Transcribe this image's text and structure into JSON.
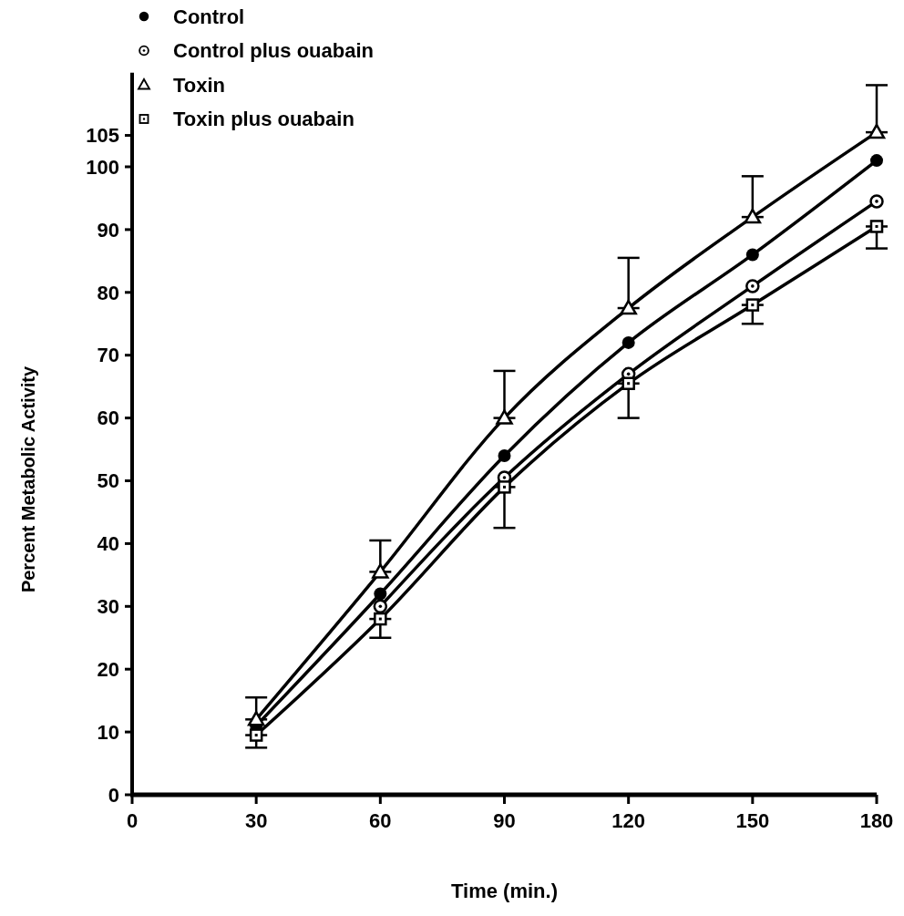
{
  "chart_data": {
    "type": "line",
    "xlabel": "Time (min.)",
    "ylabel": "Percent Metabolic Activity",
    "x": [
      30,
      60,
      90,
      120,
      150,
      180
    ],
    "xlim": [
      0,
      180
    ],
    "xticks": [
      0,
      30,
      60,
      90,
      120,
      150,
      180
    ],
    "ylim": [
      0,
      115
    ],
    "yticks": [
      0,
      10,
      20,
      30,
      40,
      50,
      60,
      70,
      80,
      90,
      100,
      105
    ],
    "legend": "top left",
    "grid": false,
    "line_style": "solid",
    "series": [
      {
        "name": "Control",
        "color": "#000000",
        "marker": "circle",
        "values": [
          11,
          32,
          54,
          72,
          86,
          101
        ]
      },
      {
        "name": "Control plus ouabain",
        "color": "#000000",
        "marker": "circle-open",
        "values": [
          null,
          30,
          50.5,
          67,
          81,
          94.5
        ]
      },
      {
        "name": "Toxin",
        "color": "#000000",
        "marker": "triangle",
        "values": [
          12,
          35.5,
          60,
          77.5,
          92,
          105.5
        ],
        "errors": [
          [
            12,
            15.5
          ],
          [
            35.5,
            40.5
          ],
          [
            60,
            67.5
          ],
          [
            77.5,
            85.5
          ],
          [
            92,
            98.5
          ],
          [
            105.5,
            113
          ]
        ]
      },
      {
        "name": "Toxin plus ouabain",
        "color": "#000000",
        "marker": "square",
        "values": [
          9.5,
          28,
          49,
          65.5,
          78,
          90.5
        ],
        "errors": [
          [
            7.5,
            9.5
          ],
          [
            25,
            28
          ],
          [
            42.5,
            49
          ],
          [
            60,
            65.5
          ],
          [
            75,
            78
          ],
          [
            87,
            90.5
          ]
        ]
      }
    ]
  }
}
